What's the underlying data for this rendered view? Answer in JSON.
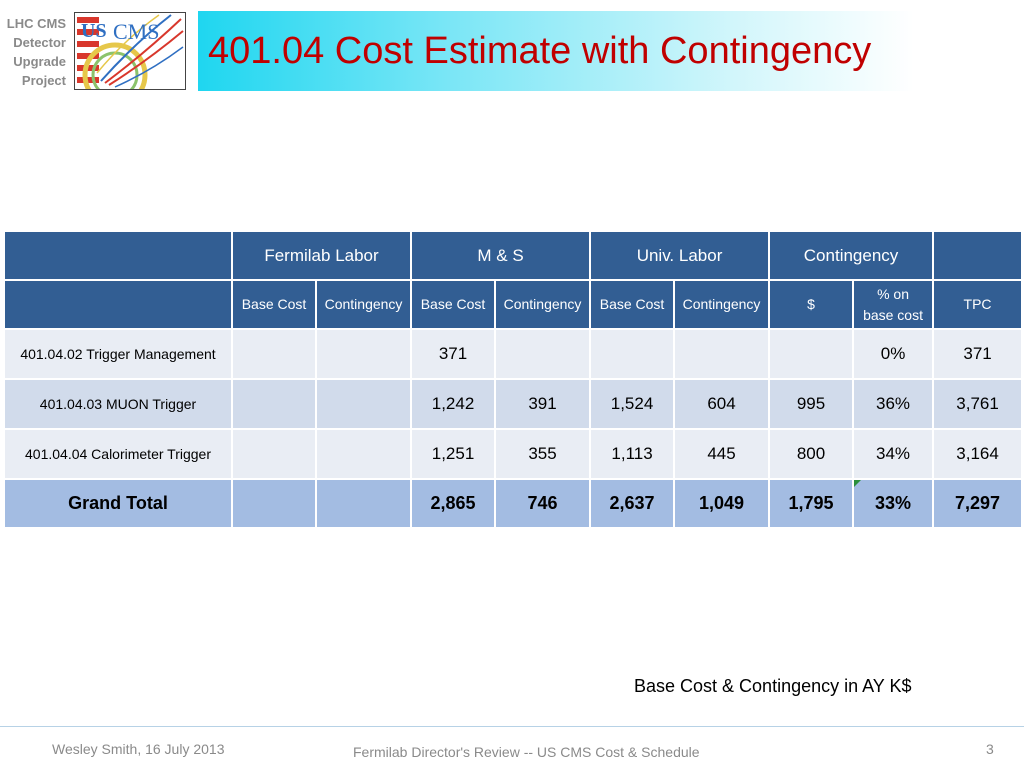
{
  "slide": {
    "org_label": [
      "LHC CMS",
      "Detector",
      "Upgrade",
      "Project"
    ],
    "title": "401.04 Cost Estimate with Contingency",
    "logo_text": [
      "US",
      "CMS"
    ],
    "units_note": "Base Cost & Contingency in AY K$"
  },
  "table": {
    "group_headers": [
      "",
      "Fermilab Labor",
      "M & S",
      "Univ. Labor",
      "Contingency",
      ""
    ],
    "sub_headers": {
      "label": "",
      "fermilab_base": "Base Cost",
      "fermilab_cont": "Contingency",
      "ms_base": "Base Cost",
      "ms_cont": "Contingency",
      "univ_base": "Base Cost",
      "univ_cont": "Contingency",
      "cont_dollar": "$",
      "pct_line1": "% on",
      "pct_line2": "base cost",
      "tpc": "TPC"
    },
    "rows": [
      [
        "401.04.02 Trigger Management",
        "",
        "",
        "371",
        "",
        "",
        "",
        "",
        "0%",
        "371"
      ],
      [
        "401.04.03 MUON Trigger",
        "",
        "",
        "1,242",
        "391",
        "1,524",
        "604",
        "995",
        "36%",
        "3,761"
      ],
      [
        "401.04.04 Calorimeter Trigger",
        "",
        "",
        "1,251",
        "355",
        "1,113",
        "445",
        "800",
        "34%",
        "3,164"
      ]
    ],
    "total": [
      "Grand Total",
      "",
      "",
      "2,865",
      "746",
      "2,637",
      "1,049",
      "1,795",
      "33%",
      "7,297"
    ]
  },
  "footer": {
    "author": "Wesley Smith, 16 July 2013",
    "event": "Fermilab Director's Review -- US CMS Cost & Schedule",
    "page": "3"
  },
  "colors": {
    "title": "#c00000",
    "header": "#325e93",
    "row_light": "#e9edf4",
    "row_mid": "#d1dbeb",
    "total": "#a3bce2",
    "marker": "#2a8f3c"
  }
}
